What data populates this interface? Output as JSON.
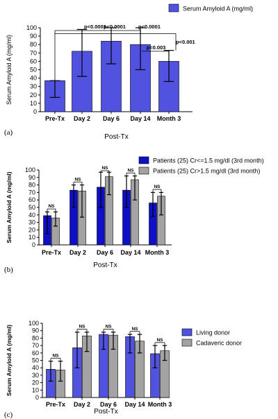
{
  "chart_data": [
    {
      "type": "bar",
      "panel_label": "(a)",
      "categories": [
        "Pre-Tx",
        "Day 2",
        "Day 6",
        "Day 14",
        "Month 3"
      ],
      "series": [
        {
          "name": "Serum Amyloid A (mg/ml)",
          "color": "#5252e0",
          "values": [
            37,
            72,
            84,
            80,
            60
          ],
          "err_low": [
            17,
            42,
            57,
            50,
            36
          ],
          "err_high": [
            37,
            98,
            100,
            100,
            73
          ]
        }
      ],
      "ylabel": "Serum Amyloid A (mg/ml)",
      "xlabel": "Post-Tx",
      "ylim": [
        0,
        100
      ],
      "yticks": [
        0,
        10,
        20,
        30,
        40,
        50,
        60,
        70,
        80,
        90,
        100
      ],
      "annotations": [
        {
          "text": "p<0.0001",
          "to": 1
        },
        {
          "text": "p<0.0001",
          "to": 2
        },
        {
          "text": "p<0.0001",
          "to": 3
        },
        {
          "text": "p<0.003",
          "from": 3,
          "to": 4
        },
        {
          "text": "p<0.001",
          "to": 4
        }
      ]
    },
    {
      "type": "bar",
      "panel_label": "(b)",
      "categories": [
        "Pre-Tx",
        "Day 2",
        "Day 6",
        "Day 14",
        "Month 3"
      ],
      "series": [
        {
          "name": "Patients (25) Cr<=1.5 mg/dl (3rd month)",
          "color": "#0f0fc8",
          "values": [
            39,
            73,
            77,
            73,
            56
          ],
          "err_low": [
            15,
            50,
            50,
            50,
            38
          ],
          "err_high": [
            44,
            80,
            97,
            92,
            70
          ]
        },
        {
          "name": "Patients (25) Cr>1.5 mg/dl (3rd month)",
          "color": "#a3a3a3",
          "values": [
            36,
            72,
            91,
            87,
            65
          ],
          "err_low": [
            25,
            37,
            67,
            60,
            40
          ],
          "err_high": [
            44,
            80,
            97,
            92,
            70
          ]
        }
      ],
      "ylabel": "Serum Amyloid A (mg/ml)",
      "xlabel": "Post-Tx",
      "ylim": [
        0,
        100
      ],
      "yticks": [
        0,
        10,
        20,
        30,
        40,
        50,
        60,
        70,
        80,
        90,
        100
      ],
      "annotations": [
        "NS",
        "NS",
        "NS",
        "NS",
        "NS"
      ]
    },
    {
      "type": "bar",
      "panel_label": "(c)",
      "categories": [
        "Pre-Tx",
        "Day 2",
        "Day 6",
        "Day 14",
        "Month 3"
      ],
      "series": [
        {
          "name": "Living donor",
          "color": "#5252e0",
          "values": [
            38,
            67,
            85,
            82,
            59
          ],
          "err_low": [
            22,
            40,
            65,
            60,
            40
          ],
          "err_high": [
            49,
            88,
            88,
            85,
            70
          ]
        },
        {
          "name": "Cadaveric donor",
          "color": "#a3a3a3",
          "values": [
            37,
            83,
            84,
            76,
            63
          ],
          "err_low": [
            22,
            62,
            65,
            60,
            50
          ],
          "err_high": [
            49,
            88,
            88,
            85,
            70
          ]
        }
      ],
      "ylabel": "Serum Amyloid A (mg/ml)",
      "xlabel": "Post-Tx",
      "ylim": [
        0,
        100
      ],
      "yticks": [
        0,
        10,
        20,
        30,
        40,
        50,
        60,
        70,
        80,
        90,
        100
      ],
      "annotations": [
        "NS",
        "NS",
        "NS",
        "NS",
        "NS"
      ]
    }
  ]
}
